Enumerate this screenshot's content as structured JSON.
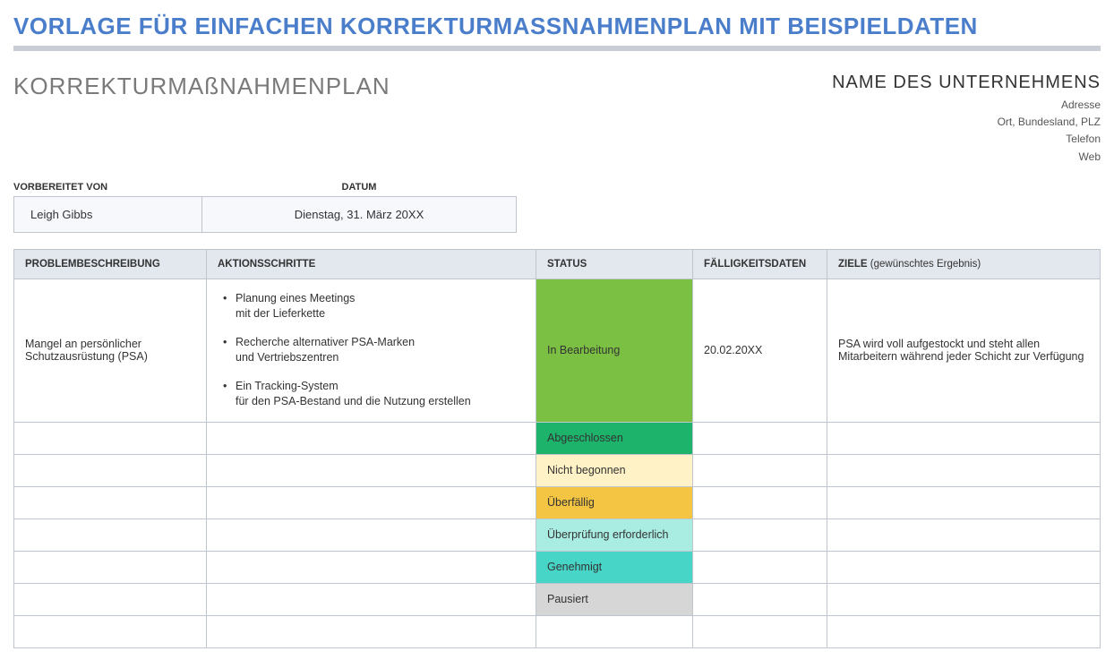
{
  "colors": {
    "title": "#4a7ecb",
    "underline": "#c9ced6",
    "header_bg": "#e3e7ee",
    "meta_bg": "#f6f8fc",
    "border": "#bfc5cc",
    "status": {
      "in_progress": "#7bc043",
      "completed": "#1db36a",
      "not_started": "#fff2c6",
      "overdue": "#f4c542",
      "review": "#a9ede2",
      "approved": "#47d5c8",
      "paused": "#d6d6d6"
    }
  },
  "main_title": "VORLAGE FÜR EINFACHEN KORREKTURMASSNAHMENPLAN MIT BEISPIELDATEN",
  "subtitle": "KORREKTURMAßNAHMENPLAN",
  "company": {
    "name": "NAME DES UNTERNEHMENS",
    "address": "Adresse",
    "city": "Ort, Bundesland, PLZ",
    "phone": "Telefon",
    "web": "Web"
  },
  "meta": {
    "prepared_by_label": "VORBEREITET VON",
    "date_label": "DATUM",
    "prepared_by": "Leigh Gibbs",
    "date": "Dienstag, 31. März 20XX"
  },
  "columns": {
    "description": "PROBLEMBESCHREIBUNG",
    "actions": "AKTIONSSCHRITTE",
    "status": "STATUS",
    "due": "FÄLLIGKEITSDATEN",
    "goals": "ZIELE",
    "goals_sub": "(gewünschtes Ergebnis)"
  },
  "rows": [
    {
      "description": "Mangel an persönlicher Schutzausrüstung (PSA)",
      "actions": [
        "Planung eines Meetings\nmit der Lieferkette",
        "Recherche alternativer PSA-Marken\nund Vertriebszentren",
        "Ein Tracking-System\nfür den PSA-Bestand und die Nutzung erstellen"
      ],
      "status_label": "In Bearbeitung",
      "status_key": "in_progress",
      "due": "20.02.20XX",
      "goal": "PSA wird voll aufgestockt und steht allen Mitarbeitern während jeder Schicht zur Verfügung"
    },
    {
      "status_label": "Abgeschlossen",
      "status_key": "completed"
    },
    {
      "status_label": "Nicht begonnen",
      "status_key": "not_started"
    },
    {
      "status_label": "Überfällig",
      "status_key": "overdue"
    },
    {
      "status_label": "Überprüfung erforderlich",
      "status_key": "review"
    },
    {
      "status_label": "Genehmigt",
      "status_key": "approved"
    },
    {
      "status_label": "Pausiert",
      "status_key": "paused"
    },
    {}
  ]
}
